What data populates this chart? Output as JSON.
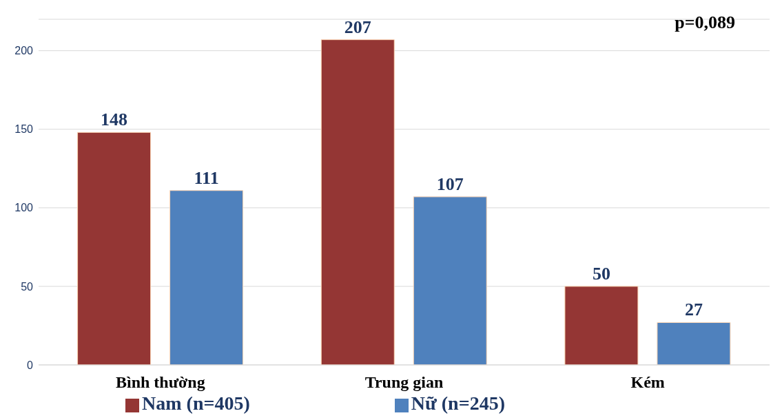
{
  "chart_data": {
    "type": "bar",
    "categories": [
      "Bình thường",
      "Trung gian",
      "Kém"
    ],
    "series": [
      {
        "name": "Nam (n=405)",
        "color": "#943634",
        "values": [
          148,
          207,
          50
        ]
      },
      {
        "name": "Nữ (n=245)",
        "color": "#4f81bd",
        "values": [
          111,
          107,
          27
        ]
      }
    ],
    "ylim": [
      0,
      220
    ],
    "yticks": [
      0,
      50,
      100,
      150,
      200
    ],
    "grid": "y",
    "legend": "bottom",
    "data_labels": true,
    "annotations": [
      "p=0,089"
    ]
  }
}
